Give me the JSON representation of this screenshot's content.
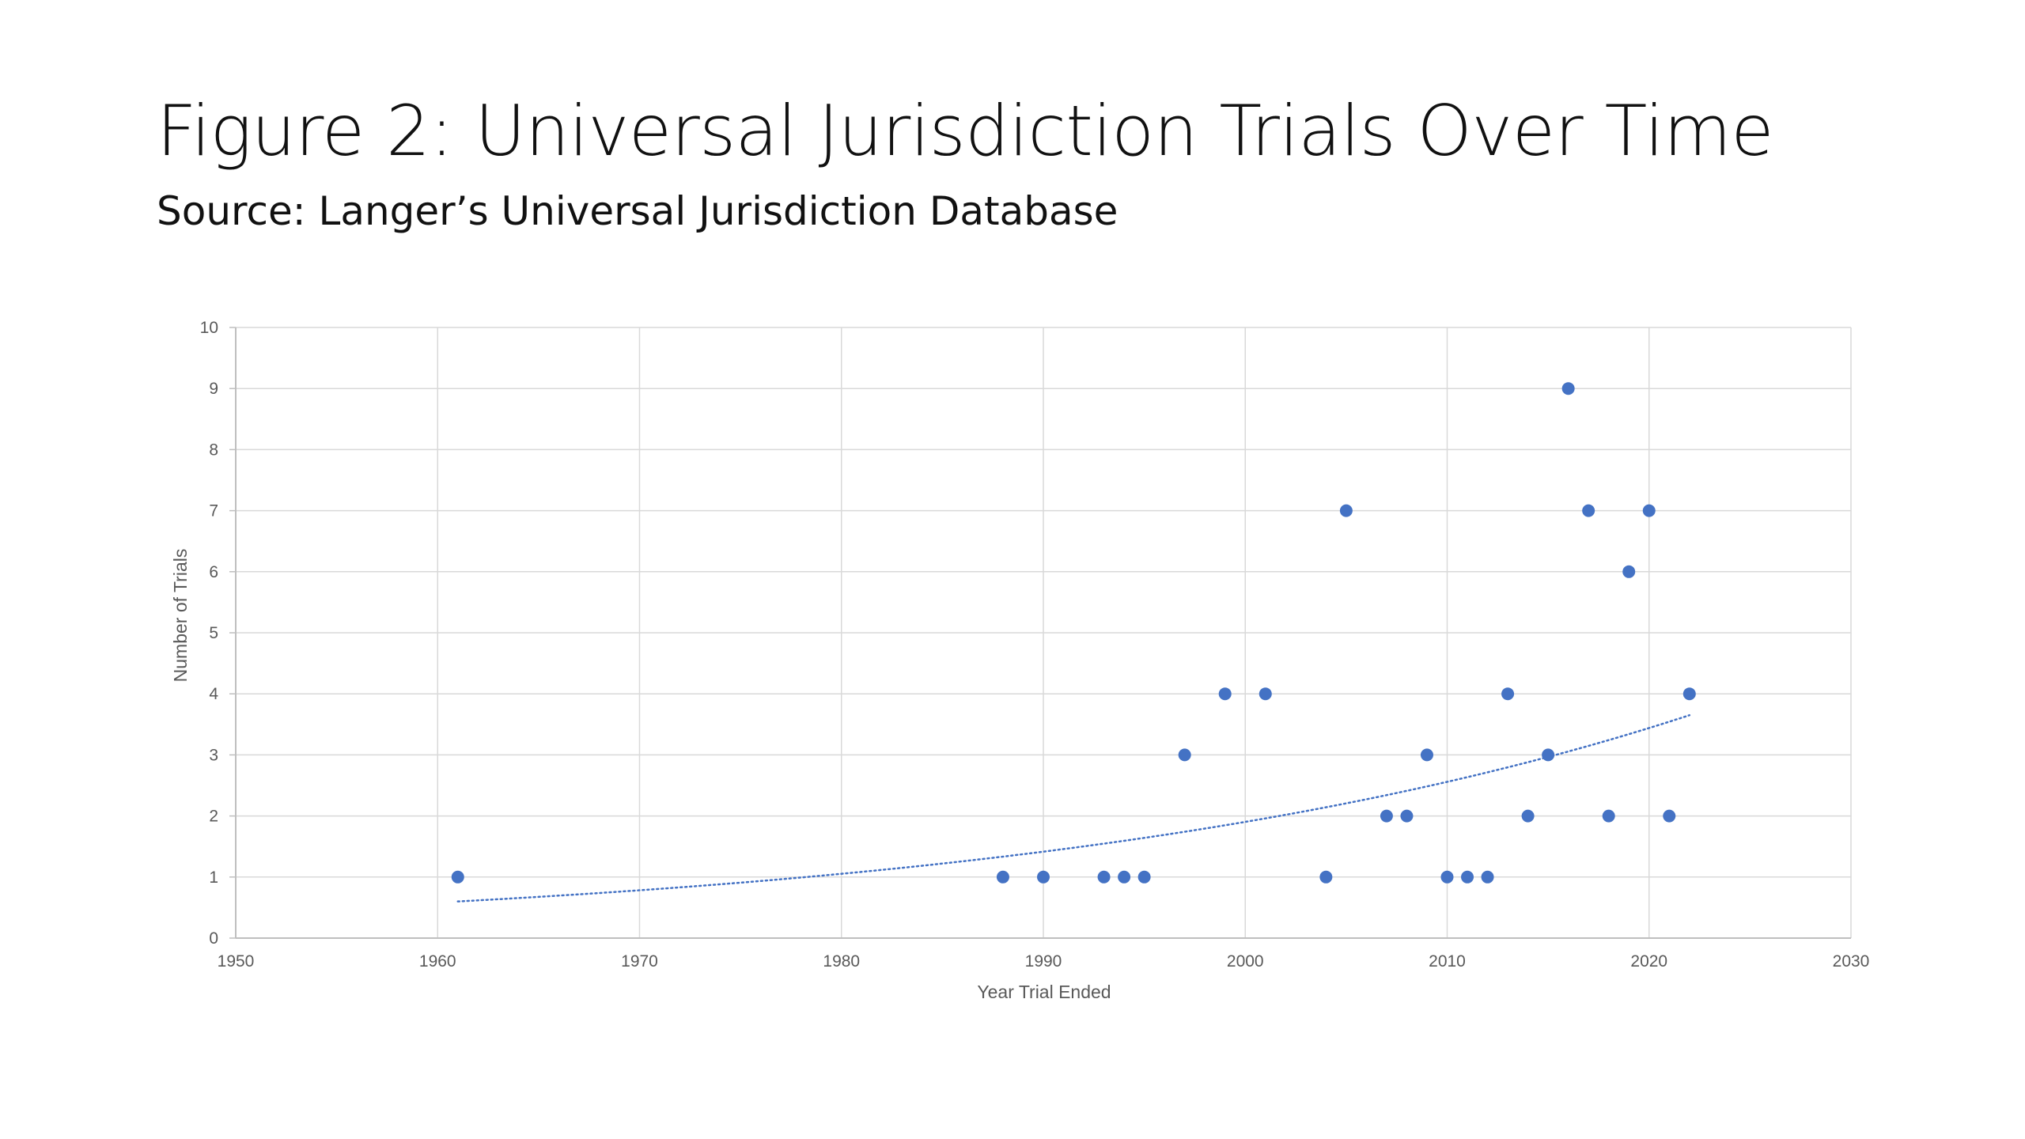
{
  "slide": {
    "title": "Figure 2: Universal Jurisdiction Trials Over Time",
    "subtitle": "Source: Langer’s Universal Jurisdiction Database"
  },
  "chart_data": {
    "type": "scatter",
    "xlabel": "Year Trial Ended",
    "ylabel": "Number of Trials",
    "xlim": [
      1950,
      2030
    ],
    "ylim": [
      0,
      10
    ],
    "xticks": [
      1950,
      1960,
      1970,
      1980,
      1990,
      2000,
      2010,
      2020,
      2030
    ],
    "yticks": [
      0,
      1,
      2,
      3,
      4,
      5,
      6,
      7,
      8,
      9,
      10
    ],
    "grid": true,
    "legend": "none",
    "points": [
      {
        "x": 1961,
        "y": 1
      },
      {
        "x": 1988,
        "y": 1
      },
      {
        "x": 1990,
        "y": 1
      },
      {
        "x": 1993,
        "y": 1
      },
      {
        "x": 1994,
        "y": 1
      },
      {
        "x": 1995,
        "y": 1
      },
      {
        "x": 1997,
        "y": 3
      },
      {
        "x": 1999,
        "y": 4
      },
      {
        "x": 2001,
        "y": 4
      },
      {
        "x": 2004,
        "y": 1
      },
      {
        "x": 2005,
        "y": 7
      },
      {
        "x": 2007,
        "y": 2
      },
      {
        "x": 2008,
        "y": 2
      },
      {
        "x": 2009,
        "y": 3
      },
      {
        "x": 2010,
        "y": 1
      },
      {
        "x": 2011,
        "y": 1
      },
      {
        "x": 2012,
        "y": 1
      },
      {
        "x": 2013,
        "y": 4
      },
      {
        "x": 2014,
        "y": 2
      },
      {
        "x": 2015,
        "y": 3
      },
      {
        "x": 2016,
        "y": 9
      },
      {
        "x": 2017,
        "y": 7
      },
      {
        "x": 2018,
        "y": 2
      },
      {
        "x": 2019,
        "y": 6
      },
      {
        "x": 2020,
        "y": 7
      },
      {
        "x": 2021,
        "y": 2
      },
      {
        "x": 2022,
        "y": 4
      }
    ],
    "trendline": {
      "type": "exponential",
      "style": "dotted",
      "x_range": [
        1961,
        2022
      ],
      "y_range": [
        0.6,
        3.65
      ]
    },
    "colors": {
      "points": "#4472C4",
      "trendline": "#4472C4",
      "grid": "#D9D9D9",
      "axis": "#BFBFBF",
      "text": "#595959"
    }
  }
}
